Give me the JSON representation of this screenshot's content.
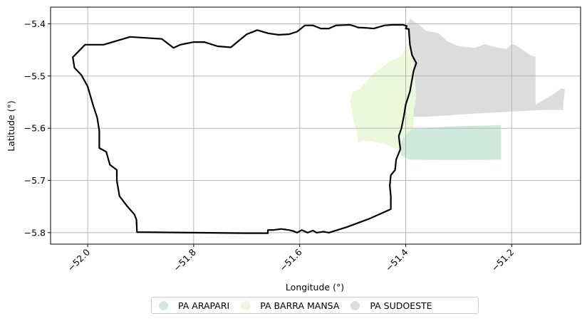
{
  "map": {
    "xlabel": "Longitude (°)",
    "ylabel": "Latitude (°)",
    "xlim": [
      -52.07,
      -51.07
    ],
    "ylim": [
      -5.822,
      -5.368
    ],
    "xticks": [
      -52.0,
      -51.8,
      -51.6,
      -51.4,
      -51.2
    ],
    "yticks": [
      -5.4,
      -5.5,
      -5.6,
      -5.7,
      -5.8
    ],
    "xtick_labels": [
      "−52.0",
      "−51.8",
      "−51.6",
      "−51.4",
      "−51.2"
    ],
    "ytick_labels": [
      "−5.4",
      "−5.5",
      "−5.6",
      "−5.7",
      "−5.8"
    ],
    "grid": true,
    "legend_placement": "bottom-center",
    "legend": [
      {
        "label": "PA ARAPARI",
        "color": "#cfeadd"
      },
      {
        "label": "PA BARRA MANSA",
        "color": "#ecf8dc"
      },
      {
        "label": "PA SUDOESTE",
        "color": "#dcdcdc"
      }
    ],
    "outline_color": "#000000",
    "grid_color": "#b0b0b0",
    "layers": [
      {
        "name": "PA SUDOESTE",
        "color": "#dcdcdc",
        "coords": [
          [
            -51.398,
            -5.407
          ],
          [
            -51.392,
            -5.39
          ],
          [
            -51.375,
            -5.402
          ],
          [
            -51.362,
            -5.413
          ],
          [
            -51.338,
            -5.418
          ],
          [
            -51.322,
            -5.433
          ],
          [
            -51.3,
            -5.443
          ],
          [
            -51.27,
            -5.446
          ],
          [
            -51.25,
            -5.439
          ],
          [
            -51.23,
            -5.445
          ],
          [
            -51.21,
            -5.448
          ],
          [
            -51.2,
            -5.439
          ],
          [
            -51.19,
            -5.442
          ],
          [
            -51.165,
            -5.46
          ],
          [
            -51.155,
            -5.463
          ],
          [
            -51.155,
            -5.555
          ],
          [
            -51.14,
            -5.546
          ],
          [
            -51.12,
            -5.534
          ],
          [
            -51.107,
            -5.524
          ],
          [
            -51.1,
            -5.525
          ],
          [
            -51.103,
            -5.565
          ],
          [
            -51.14,
            -5.565
          ],
          [
            -51.2,
            -5.568
          ],
          [
            -51.27,
            -5.572
          ],
          [
            -51.36,
            -5.578
          ],
          [
            -51.388,
            -5.578
          ],
          [
            -51.383,
            -5.54
          ],
          [
            -51.385,
            -5.478
          ],
          [
            -51.392,
            -5.44
          ]
        ]
      },
      {
        "name": "PA BARRA MANSA",
        "color": "#ecf8dc",
        "coords": [
          [
            -51.398,
            -5.44
          ],
          [
            -51.408,
            -5.462
          ],
          [
            -51.43,
            -5.472
          ],
          [
            -51.462,
            -5.497
          ],
          [
            -51.48,
            -5.517
          ],
          [
            -51.486,
            -5.525
          ],
          [
            -51.5,
            -5.53
          ],
          [
            -51.505,
            -5.548
          ],
          [
            -51.5,
            -5.575
          ],
          [
            -51.492,
            -5.61
          ],
          [
            -51.49,
            -5.628
          ],
          [
            -51.48,
            -5.623
          ],
          [
            -51.455,
            -5.627
          ],
          [
            -51.438,
            -5.63
          ],
          [
            -51.418,
            -5.64
          ],
          [
            -51.395,
            -5.642
          ],
          [
            -51.385,
            -5.625
          ],
          [
            -51.385,
            -5.6
          ],
          [
            -51.385,
            -5.568
          ],
          [
            -51.38,
            -5.54
          ],
          [
            -51.384,
            -5.49
          ],
          [
            -51.39,
            -5.46
          ]
        ]
      },
      {
        "name": "PA ARAPARI",
        "color": "#cfeadd",
        "coords": [
          [
            -51.38,
            -5.6
          ],
          [
            -51.3,
            -5.596
          ],
          [
            -51.22,
            -5.594
          ],
          [
            -51.22,
            -5.66
          ],
          [
            -51.3,
            -5.661
          ],
          [
            -51.395,
            -5.66
          ],
          [
            -51.408,
            -5.652
          ],
          [
            -51.412,
            -5.636
          ],
          [
            -51.405,
            -5.62
          ],
          [
            -51.392,
            -5.604
          ]
        ]
      }
    ],
    "outline": [
      [
        -52.028,
        -5.464
      ],
      [
        -52.005,
        -5.44
      ],
      [
        -51.97,
        -5.44
      ],
      [
        -51.92,
        -5.425
      ],
      [
        -51.86,
        -5.429
      ],
      [
        -51.838,
        -5.446
      ],
      [
        -51.825,
        -5.44
      ],
      [
        -51.8,
        -5.435
      ],
      [
        -51.78,
        -5.435
      ],
      [
        -51.755,
        -5.443
      ],
      [
        -51.73,
        -5.445
      ],
      [
        -51.7,
        -5.42
      ],
      [
        -51.68,
        -5.412
      ],
      [
        -51.66,
        -5.418
      ],
      [
        -51.64,
        -5.421
      ],
      [
        -51.62,
        -5.42
      ],
      [
        -51.605,
        -5.415
      ],
      [
        -51.59,
        -5.403
      ],
      [
        -51.575,
        -5.403
      ],
      [
        -51.56,
        -5.409
      ],
      [
        -51.545,
        -5.409
      ],
      [
        -51.532,
        -5.403
      ],
      [
        -51.505,
        -5.402
      ],
      [
        -51.498,
        -5.404
      ],
      [
        -51.49,
        -5.407
      ],
      [
        -51.472,
        -5.408
      ],
      [
        -51.46,
        -5.409
      ],
      [
        -51.44,
        -5.403
      ],
      [
        -51.425,
        -5.402
      ],
      [
        -51.405,
        -5.402
      ],
      [
        -51.398,
        -5.404
      ],
      [
        -51.4,
        -5.409
      ],
      [
        -51.394,
        -5.41
      ],
      [
        -51.392,
        -5.44
      ],
      [
        -51.388,
        -5.46
      ],
      [
        -51.38,
        -5.475
      ],
      [
        -51.385,
        -5.49
      ],
      [
        -51.392,
        -5.53
      ],
      [
        -51.4,
        -5.555
      ],
      [
        -51.403,
        -5.575
      ],
      [
        -51.408,
        -5.6
      ],
      [
        -51.413,
        -5.615
      ],
      [
        -51.41,
        -5.64
      ],
      [
        -51.418,
        -5.66
      ],
      [
        -51.42,
        -5.68
      ],
      [
        -51.428,
        -5.69
      ],
      [
        -51.43,
        -5.71
      ],
      [
        -51.428,
        -5.73
      ],
      [
        -51.428,
        -5.755
      ],
      [
        -51.468,
        -5.773
      ],
      [
        -51.51,
        -5.789
      ],
      [
        -51.545,
        -5.8
      ],
      [
        -51.555,
        -5.798
      ],
      [
        -51.568,
        -5.8
      ],
      [
        -51.575,
        -5.796
      ],
      [
        -51.585,
        -5.8
      ],
      [
        -51.596,
        -5.795
      ],
      [
        -51.605,
        -5.8
      ],
      [
        -51.612,
        -5.797
      ],
      [
        -51.62,
        -5.795
      ],
      [
        -51.635,
        -5.793
      ],
      [
        -51.65,
        -5.795
      ],
      [
        -51.66,
        -5.795
      ],
      [
        -51.66,
        -5.801
      ],
      [
        -51.7,
        -5.801
      ],
      [
        -51.8,
        -5.8
      ],
      [
        -51.907,
        -5.799
      ],
      [
        -51.908,
        -5.775
      ],
      [
        -51.912,
        -5.765
      ],
      [
        -51.925,
        -5.75
      ],
      [
        -51.94,
        -5.73
      ],
      [
        -51.945,
        -5.7
      ],
      [
        -51.945,
        -5.68
      ],
      [
        -51.958,
        -5.67
      ],
      [
        -51.965,
        -5.645
      ],
      [
        -51.978,
        -5.638
      ],
      [
        -51.978,
        -5.605
      ],
      [
        -51.982,
        -5.58
      ],
      [
        -51.99,
        -5.555
      ],
      [
        -52.0,
        -5.52
      ],
      [
        -52.012,
        -5.498
      ],
      [
        -52.025,
        -5.484
      ]
    ]
  }
}
